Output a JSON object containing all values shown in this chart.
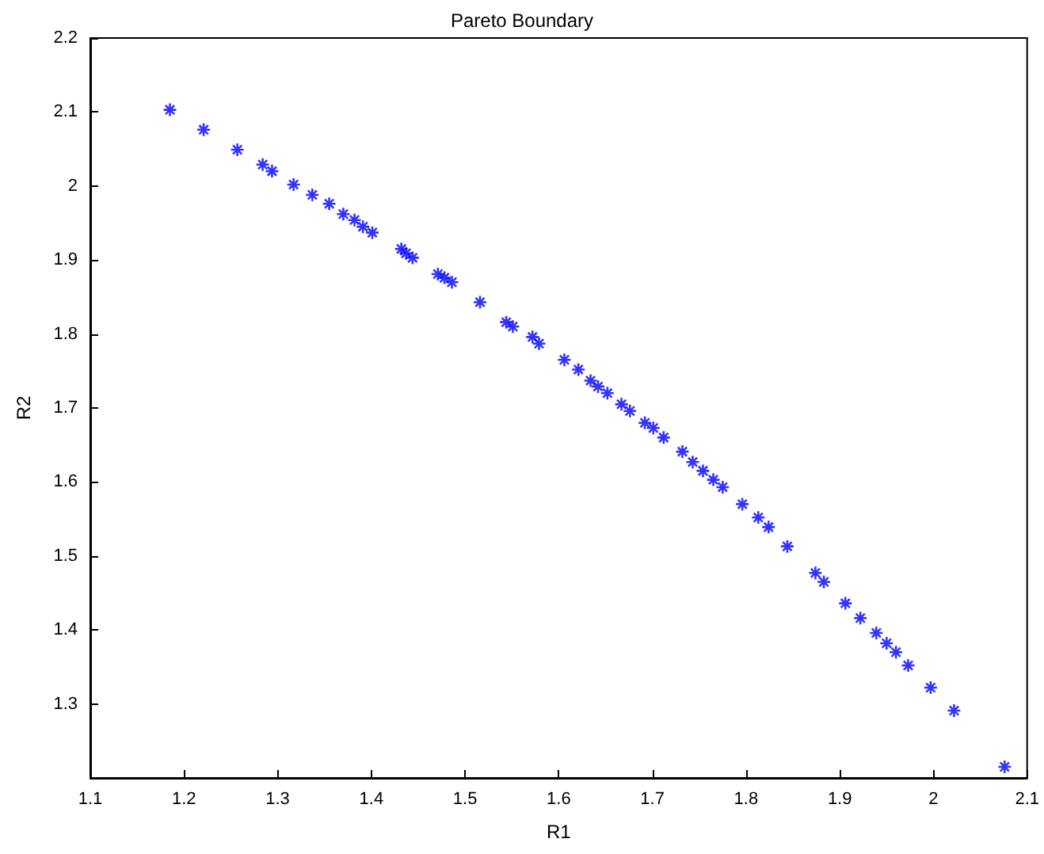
{
  "chart_data": {
    "type": "scatter",
    "title": "Pareto Boundary",
    "xlabel": "R1",
    "ylabel": "R2",
    "x": [
      1.185,
      1.221,
      1.257,
      1.284,
      1.294,
      1.317,
      1.337,
      1.355,
      1.37,
      1.382,
      1.391,
      1.401,
      1.432,
      1.437,
      1.444,
      1.471,
      1.478,
      1.486,
      1.516,
      1.544,
      1.551,
      1.572,
      1.579,
      1.606,
      1.621,
      1.634,
      1.642,
      1.652,
      1.667,
      1.676,
      1.692,
      1.701,
      1.712,
      1.732,
      1.743,
      1.754,
      1.765,
      1.775,
      1.796,
      1.813,
      1.824,
      1.844,
      1.874,
      1.883,
      1.906,
      1.922,
      1.939,
      1.95,
      1.96,
      1.973,
      1.997,
      2.022,
      2.076
    ],
    "series": [
      {
        "color": "#0000ff",
        "values": [
          2.103,
          2.076,
          2.049,
          2.029,
          2.02,
          2.002,
          1.988,
          1.976,
          1.962,
          1.954,
          1.945,
          1.937,
          1.915,
          1.909,
          1.903,
          1.881,
          1.876,
          1.87,
          1.843,
          1.816,
          1.81,
          1.796,
          1.787,
          1.765,
          1.752,
          1.737,
          1.729,
          1.72,
          1.705,
          1.696,
          1.68,
          1.673,
          1.66,
          1.641,
          1.627,
          1.615,
          1.603,
          1.593,
          1.57,
          1.552,
          1.539,
          1.513,
          1.477,
          1.465,
          1.436,
          1.416,
          1.396,
          1.382,
          1.37,
          1.352,
          1.322,
          1.291,
          1.215
        ]
      }
    ],
    "xlim": [
      1.1,
      2.1
    ],
    "xticks": [
      1.1,
      1.2,
      1.3,
      1.4,
      1.5,
      1.6,
      1.7,
      1.8,
      1.9,
      2,
      2.1
    ],
    "ylim": [
      1.2,
      2.2
    ],
    "yticks": [
      {
        "value": 1.2,
        "label": null
      },
      1.3,
      1.4,
      1.5,
      1.6,
      1.7,
      1.8,
      1.9,
      2,
      2.1,
      2.2
    ],
    "marker": "cross",
    "grid": false
  }
}
